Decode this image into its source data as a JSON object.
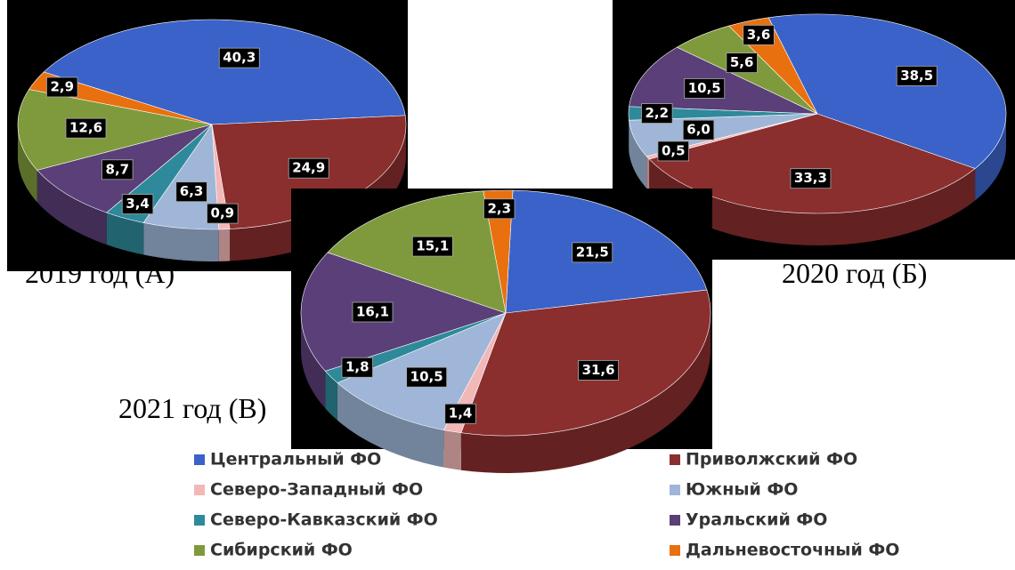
{
  "chart_data": [
    {
      "type": "pie",
      "title": "2019 год (А)",
      "categories": [
        "Центральный ФО",
        "Приволжский ФО",
        "Северо-Западный ФО",
        "Южный ФО",
        "Северо-Кавказский ФО",
        "Уральский ФО",
        "Сибирский ФО",
        "Дальневосточный ФО"
      ],
      "values": [
        40.3,
        24.9,
        0.9,
        6.3,
        3.4,
        8.7,
        12.6,
        2.9
      ],
      "value_labels": [
        "40,3",
        "24,9",
        "0,9",
        "6,3",
        "3,4",
        "8,7",
        "12,6",
        "2,9"
      ],
      "colors": [
        "#3a62c8",
        "#8b2e2e",
        "#f2b8b8",
        "#9fb6d8",
        "#2e8a9a",
        "#5a3f78",
        "#7f9a3c",
        "#e8700f"
      ]
    },
    {
      "type": "pie",
      "title": "2020 год (Б)",
      "categories": [
        "Центральный ФО",
        "Приволжский ФО",
        "Северо-Западный ФО",
        "Южный ФО",
        "Северо-Кавказский ФО",
        "Уральский ФО",
        "Сибирский ФО",
        "Дальневосточный ФО"
      ],
      "values": [
        38.5,
        33.3,
        0.5,
        6.0,
        2.2,
        10.5,
        5.6,
        3.6
      ],
      "value_labels": [
        "38,5",
        "33,3",
        "0,5",
        "6,0",
        "2,2",
        "10,5",
        "5,6",
        "3,6"
      ],
      "colors": [
        "#3a62c8",
        "#8b2e2e",
        "#f2b8b8",
        "#9fb6d8",
        "#2e8a9a",
        "#5a3f78",
        "#7f9a3c",
        "#e8700f"
      ]
    },
    {
      "type": "pie",
      "title": "2021 год (В)",
      "categories": [
        "Центральный ФО",
        "Приволжский ФО",
        "Северо-Западный ФО",
        "Южный ФО",
        "Северо-Кавказский ФО",
        "Уральский ФО",
        "Сибирский ФО",
        "Дальневосточный ФО"
      ],
      "values": [
        21.5,
        31.6,
        1.4,
        10.5,
        1.8,
        16.1,
        15.1,
        2.3
      ],
      "value_labels": [
        "21,5",
        "31,6",
        "1,4",
        "10,5",
        "1,8",
        "16,1",
        "15,1",
        "2,3"
      ],
      "colors": [
        "#3a62c8",
        "#8b2e2e",
        "#f2b8b8",
        "#9fb6d8",
        "#2e8a9a",
        "#5a3f78",
        "#7f9a3c",
        "#e8700f"
      ]
    }
  ]
}
